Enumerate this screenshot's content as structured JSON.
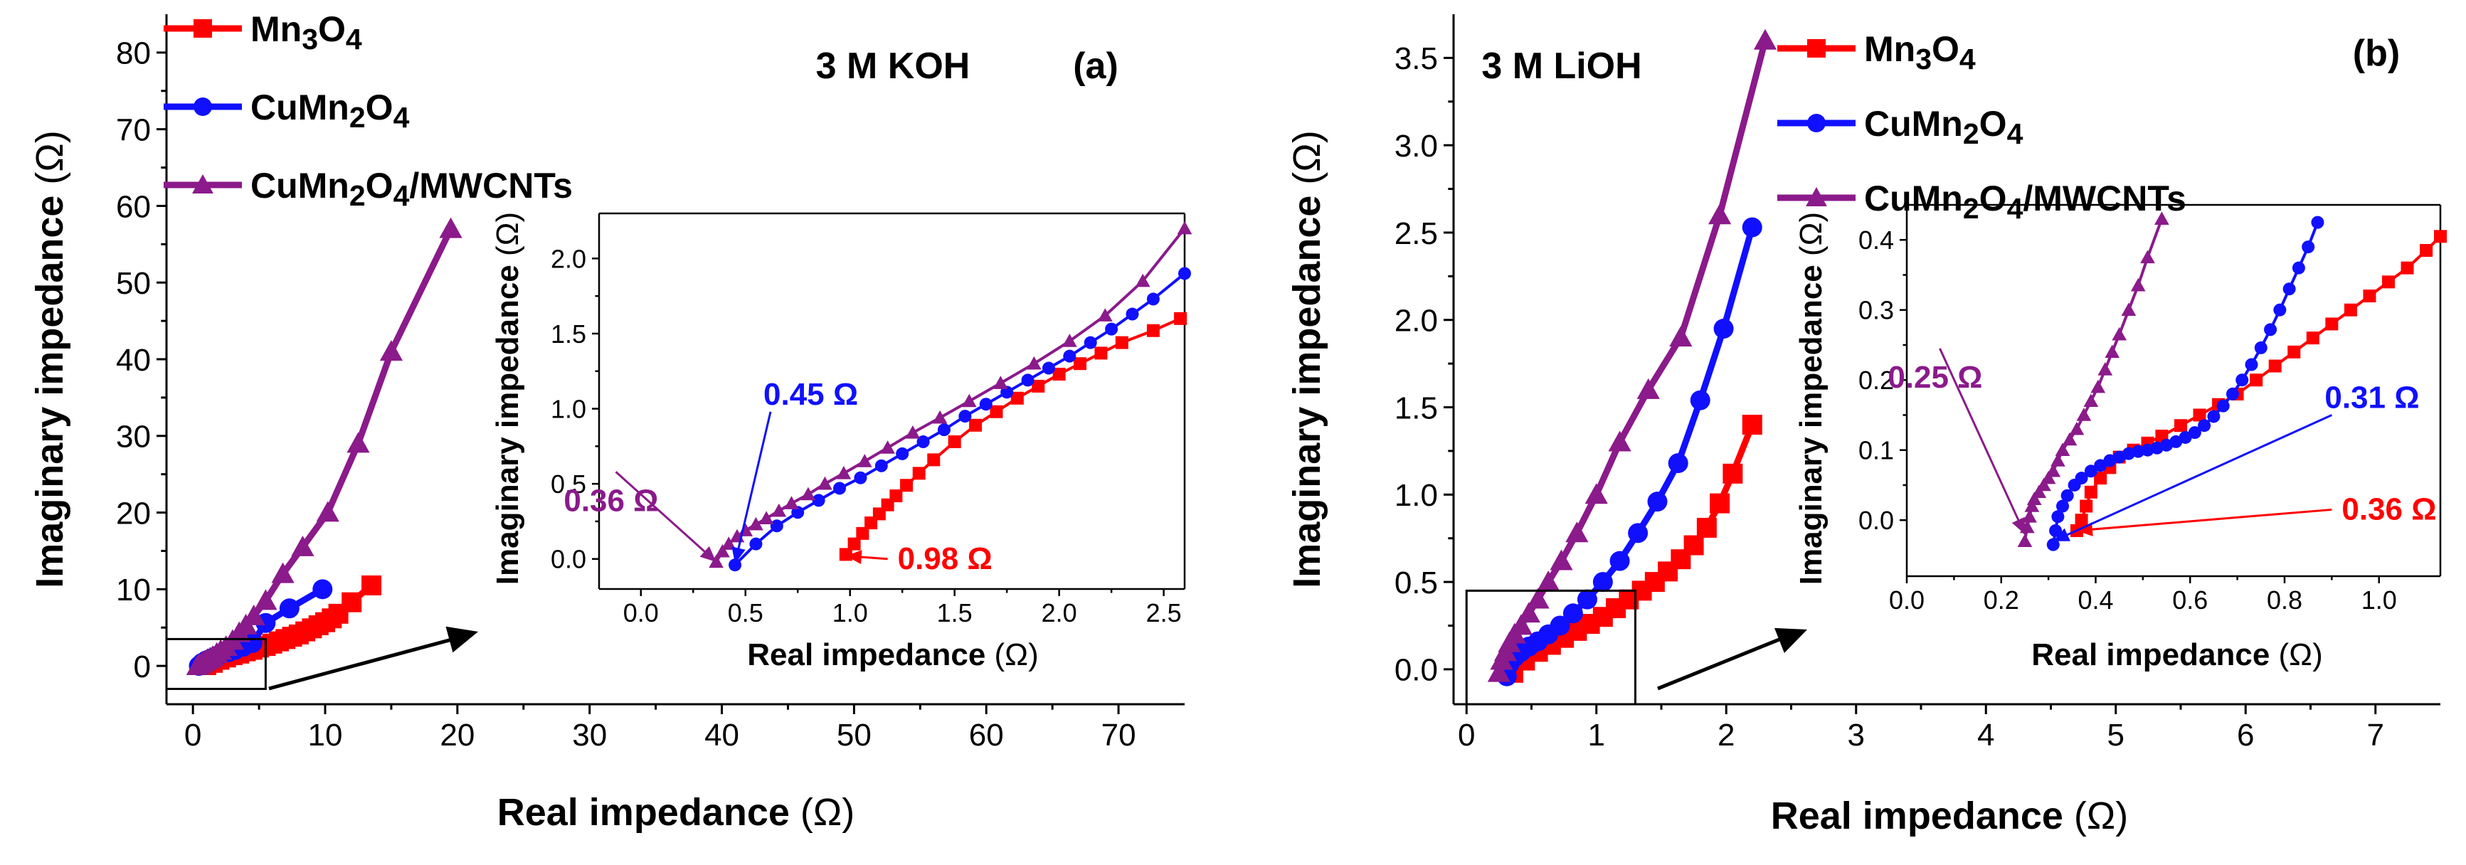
{
  "colors": {
    "Mn3O4": "#ff0000",
    "CuMn2O4": "#1010ff",
    "CuMn2O4/MWCNTs": "#8b1a8b",
    "axis": "#000000"
  },
  "legend": {
    "entries": [
      {
        "key": "Mn3O4",
        "parts": [
          [
            "Mn",
            false
          ],
          [
            "3",
            true
          ],
          [
            "O",
            false
          ],
          [
            "4",
            true
          ]
        ]
      },
      {
        "key": "CuMn2O4",
        "parts": [
          [
            "CuMn",
            false
          ],
          [
            "2",
            true
          ],
          [
            "O",
            false
          ],
          [
            "4",
            true
          ]
        ]
      },
      {
        "key": "CuMn2O4/MWCNTs",
        "parts": [
          [
            "CuMn",
            false
          ],
          [
            "2",
            true
          ],
          [
            "O",
            false
          ],
          [
            "4",
            true
          ],
          [
            "/MWCNTs",
            false
          ]
        ]
      }
    ]
  },
  "chart_data": [
    {
      "type": "line",
      "title": "3 M KOH",
      "panel_label": "(a)",
      "xlabel": "Real impedance",
      "ylabel": "Imaginary impedance",
      "unit": "(Ω)",
      "xlim": [
        -2,
        75
      ],
      "ylim": [
        -5,
        85
      ],
      "xticks": [
        0,
        10,
        20,
        30,
        40,
        50,
        60,
        70
      ],
      "yticks": [
        0,
        10,
        20,
        30,
        40,
        50,
        60,
        70,
        80
      ],
      "zoom_box": {
        "x": [
          -2,
          5.5
        ],
        "y": [
          -3,
          3.5
        ]
      },
      "series": [
        {
          "name": "Mn3O4",
          "marker": "square",
          "x": [
            1.0,
            1.5,
            2.0,
            2.5,
            3.0,
            3.5,
            4.0,
            4.5,
            5.0,
            5.5,
            6.0,
            6.5,
            7.0,
            7.5,
            8.0,
            8.5,
            9.0,
            9.5,
            10.0,
            10.5,
            11.0,
            12.0,
            13.5
          ],
          "y": [
            0.1,
            0.4,
            0.8,
            1.1,
            1.4,
            1.6,
            1.9,
            2.1,
            2.4,
            2.6,
            2.9,
            3.2,
            3.5,
            3.8,
            4.1,
            4.5,
            4.9,
            5.3,
            5.7,
            6.2,
            6.8,
            8.3,
            10.5
          ]
        },
        {
          "name": "CuMn2O4",
          "marker": "circle",
          "x": [
            0.45,
            0.7,
            1.0,
            1.4,
            1.8,
            2.2,
            2.7,
            3.2,
            3.8,
            4.5,
            5.5,
            7.3,
            9.8
          ],
          "y": [
            0.0,
            0.4,
            0.7,
            1.0,
            1.3,
            1.6,
            1.8,
            2.1,
            2.5,
            3.0,
            5.6,
            7.5,
            10.0
          ]
        },
        {
          "name": "CuMn2O4/MWCNTs",
          "marker": "triangle",
          "x": [
            0.36,
            0.5,
            0.7,
            0.9,
            1.1,
            1.3,
            1.5,
            1.8,
            2.1,
            2.5,
            3.0,
            3.5,
            4.0,
            4.6,
            5.5,
            6.8,
            8.3,
            10.2,
            12.5,
            15.0,
            19.5
          ],
          "y": [
            0.0,
            0.2,
            0.4,
            0.6,
            0.8,
            1.0,
            1.2,
            1.6,
            2.0,
            2.5,
            3.3,
            4.3,
            5.3,
            6.5,
            8.5,
            12.0,
            15.5,
            20.0,
            29.0,
            41.0,
            57.0
          ]
        }
      ],
      "inset": {
        "xlabel": "Real impedance",
        "ylabel": "Imaginary impedance",
        "unit": "(Ω)",
        "xlim": [
          -0.2,
          2.6
        ],
        "ylim": [
          -0.2,
          2.3
        ],
        "xticks": [
          0.0,
          0.5,
          1.0,
          1.5,
          2.0,
          2.5
        ],
        "yticks": [
          0.0,
          0.5,
          1.0,
          1.5,
          2.0
        ],
        "annotations": [
          {
            "text": "0.98 Ω",
            "series": "Mn3O4",
            "point": [
              0.98,
              0.02
            ],
            "label_at": [
              1.18,
              0.0
            ]
          },
          {
            "text": "0.45 Ω",
            "series": "CuMn2O4",
            "point": [
              0.45,
              -0.03
            ],
            "label_at": [
              0.62,
              0.98
            ]
          },
          {
            "text": "0.36 Ω",
            "series": "CuMn2O4/MWCNTs",
            "point": [
              0.36,
              -0.02
            ],
            "label_at": [
              -0.12,
              0.58
            ]
          }
        ],
        "series": [
          {
            "name": "Mn3O4",
            "marker": "square",
            "x": [
              0.98,
              1.02,
              1.06,
              1.1,
              1.14,
              1.18,
              1.22,
              1.27,
              1.33,
              1.4,
              1.5,
              1.6,
              1.7,
              1.8,
              1.9,
              2.0,
              2.1,
              2.2,
              2.3,
              2.45,
              2.58
            ],
            "y": [
              0.03,
              0.1,
              0.17,
              0.24,
              0.3,
              0.36,
              0.42,
              0.49,
              0.57,
              0.66,
              0.78,
              0.89,
              0.98,
              1.07,
              1.15,
              1.23,
              1.3,
              1.37,
              1.44,
              1.52,
              1.6
            ]
          },
          {
            "name": "CuMn2O4",
            "marker": "circle",
            "x": [
              0.45,
              0.55,
              0.65,
              0.75,
              0.85,
              0.95,
              1.05,
              1.15,
              1.25,
              1.35,
              1.45,
              1.55,
              1.65,
              1.75,
              1.85,
              1.95,
              2.05,
              2.15,
              2.25,
              2.35,
              2.45,
              2.6
            ],
            "y": [
              -0.04,
              0.1,
              0.22,
              0.31,
              0.39,
              0.47,
              0.54,
              0.62,
              0.7,
              0.78,
              0.86,
              0.95,
              1.03,
              1.11,
              1.19,
              1.27,
              1.35,
              1.44,
              1.53,
              1.63,
              1.73,
              1.9
            ]
          },
          {
            "name": "CuMn2O4/MWCNTs",
            "marker": "triangle",
            "x": [
              0.36,
              0.39,
              0.42,
              0.46,
              0.5,
              0.55,
              0.6,
              0.66,
              0.72,
              0.8,
              0.88,
              0.97,
              1.07,
              1.18,
              1.3,
              1.43,
              1.57,
              1.72,
              1.88,
              2.05,
              2.22,
              2.4,
              2.6
            ],
            "y": [
              -0.02,
              0.05,
              0.1,
              0.15,
              0.19,
              0.23,
              0.27,
              0.32,
              0.37,
              0.43,
              0.5,
              0.57,
              0.65,
              0.74,
              0.84,
              0.94,
              1.05,
              1.17,
              1.3,
              1.45,
              1.62,
              1.85,
              2.2
            ]
          }
        ]
      }
    },
    {
      "type": "line",
      "title": "3 M LiOH",
      "panel_label": "(b)",
      "xlabel": "Real impedance",
      "ylabel": "Imaginary impedance",
      "unit": "(Ω)",
      "xlim": [
        -0.1,
        7.5
      ],
      "ylim": [
        -0.2,
        3.75
      ],
      "xticks": [
        0,
        1,
        2,
        3,
        4,
        5,
        6,
        7
      ],
      "yticks": [
        0.0,
        0.5,
        1.0,
        1.5,
        2.0,
        2.5,
        3.0,
        3.5
      ],
      "zoom_box": {
        "x": [
          0.0,
          1.3
        ],
        "y": [
          -0.2,
          0.45
        ]
      },
      "series": [
        {
          "name": "Mn3O4",
          "marker": "square",
          "x": [
            0.36,
            0.45,
            0.55,
            0.65,
            0.75,
            0.85,
            0.95,
            1.05,
            1.15,
            1.25,
            1.35,
            1.45,
            1.55,
            1.65,
            1.75,
            1.85,
            1.95,
            2.05,
            2.2
          ],
          "y": [
            -0.02,
            0.05,
            0.1,
            0.14,
            0.18,
            0.22,
            0.26,
            0.3,
            0.35,
            0.4,
            0.45,
            0.5,
            0.56,
            0.63,
            0.71,
            0.81,
            0.95,
            1.12,
            1.4
          ]
        },
        {
          "name": "CuMn2O4",
          "marker": "circle",
          "x": [
            0.31,
            0.33,
            0.37,
            0.42,
            0.48,
            0.55,
            0.63,
            0.72,
            0.82,
            0.93,
            1.05,
            1.18,
            1.32,
            1.47,
            1.63,
            1.8,
            1.98,
            2.2
          ],
          "y": [
            -0.04,
            0.03,
            0.07,
            0.1,
            0.13,
            0.16,
            0.2,
            0.25,
            0.32,
            0.4,
            0.5,
            0.62,
            0.78,
            0.96,
            1.18,
            1.54,
            1.95,
            2.53
          ]
        },
        {
          "name": "CuMn2O4/MWCNTs",
          "marker": "triangle",
          "x": [
            0.25,
            0.27,
            0.3,
            0.33,
            0.37,
            0.42,
            0.48,
            0.55,
            0.63,
            0.73,
            0.85,
            1.0,
            1.18,
            1.4,
            1.65,
            1.95,
            2.3
          ],
          "y": [
            -0.02,
            0.05,
            0.1,
            0.15,
            0.2,
            0.25,
            0.32,
            0.4,
            0.5,
            0.62,
            0.78,
            1.0,
            1.3,
            1.6,
            1.9,
            2.6,
            3.6
          ]
        }
      ],
      "inset": {
        "xlabel": "Real impedance",
        "ylabel": "Imaginary impedance",
        "unit": "(Ω)",
        "xlim": [
          0.0,
          1.13
        ],
        "ylim": [
          -0.08,
          0.45
        ],
        "xticks": [
          0.0,
          0.2,
          0.4,
          0.6,
          0.8,
          1.0
        ],
        "yticks": [
          0.0,
          0.1,
          0.2,
          0.3,
          0.4
        ],
        "annotations": [
          {
            "text": "0.36 Ω",
            "series": "Mn3O4",
            "point": [
              0.36,
              -0.015
            ],
            "label_at": [
              0.9,
              0.015
            ]
          },
          {
            "text": "0.31 Ω",
            "series": "CuMn2O4",
            "point": [
              0.31,
              -0.03
            ],
            "label_at": [
              0.9,
              0.15
            ]
          },
          {
            "text": "0.25 Ω",
            "series": "CuMn2O4/MWCNTs",
            "point": [
              0.25,
              -0.02
            ],
            "label_at": [
              0.07,
              0.245
            ]
          }
        ],
        "series": [
          {
            "name": "Mn3O4",
            "marker": "square",
            "x": [
              0.36,
              0.37,
              0.38,
              0.39,
              0.41,
              0.43,
              0.45,
              0.48,
              0.51,
              0.54,
              0.58,
              0.62,
              0.66,
              0.7,
              0.74,
              0.78,
              0.82,
              0.86,
              0.9,
              0.94,
              0.98,
              1.02,
              1.06,
              1.1,
              1.13
            ],
            "y": [
              -0.015,
              0.0,
              0.02,
              0.04,
              0.06,
              0.075,
              0.09,
              0.1,
              0.11,
              0.12,
              0.135,
              0.15,
              0.165,
              0.18,
              0.2,
              0.22,
              0.24,
              0.26,
              0.28,
              0.3,
              0.32,
              0.34,
              0.36,
              0.385,
              0.405
            ]
          },
          {
            "name": "CuMn2O4",
            "marker": "circle",
            "x": [
              0.31,
              0.315,
              0.32,
              0.33,
              0.34,
              0.355,
              0.37,
              0.39,
              0.41,
              0.43,
              0.45,
              0.47,
              0.49,
              0.51,
              0.53,
              0.55,
              0.57,
              0.59,
              0.61,
              0.63,
              0.65,
              0.67,
              0.69,
              0.71,
              0.73,
              0.75,
              0.77,
              0.79,
              0.81,
              0.83,
              0.85,
              0.87
            ],
            "y": [
              -0.035,
              -0.015,
              0.005,
              0.02,
              0.035,
              0.05,
              0.06,
              0.07,
              0.078,
              0.085,
              0.09,
              0.095,
              0.098,
              0.1,
              0.103,
              0.107,
              0.112,
              0.118,
              0.125,
              0.135,
              0.148,
              0.163,
              0.18,
              0.2,
              0.222,
              0.246,
              0.272,
              0.3,
              0.33,
              0.36,
              0.39,
              0.425
            ]
          },
          {
            "name": "CuMn2O4/MWCNTs",
            "marker": "triangle",
            "x": [
              0.25,
              0.255,
              0.26,
              0.265,
              0.27,
              0.28,
              0.29,
              0.3,
              0.31,
              0.32,
              0.33,
              0.345,
              0.36,
              0.375,
              0.39,
              0.405,
              0.42,
              0.435,
              0.45,
              0.47,
              0.49,
              0.51,
              0.54
            ],
            "y": [
              -0.03,
              -0.01,
              0.005,
              0.02,
              0.03,
              0.04,
              0.05,
              0.06,
              0.07,
              0.085,
              0.1,
              0.115,
              0.13,
              0.15,
              0.17,
              0.19,
              0.215,
              0.24,
              0.265,
              0.3,
              0.335,
              0.375,
              0.43
            ]
          }
        ]
      }
    }
  ]
}
